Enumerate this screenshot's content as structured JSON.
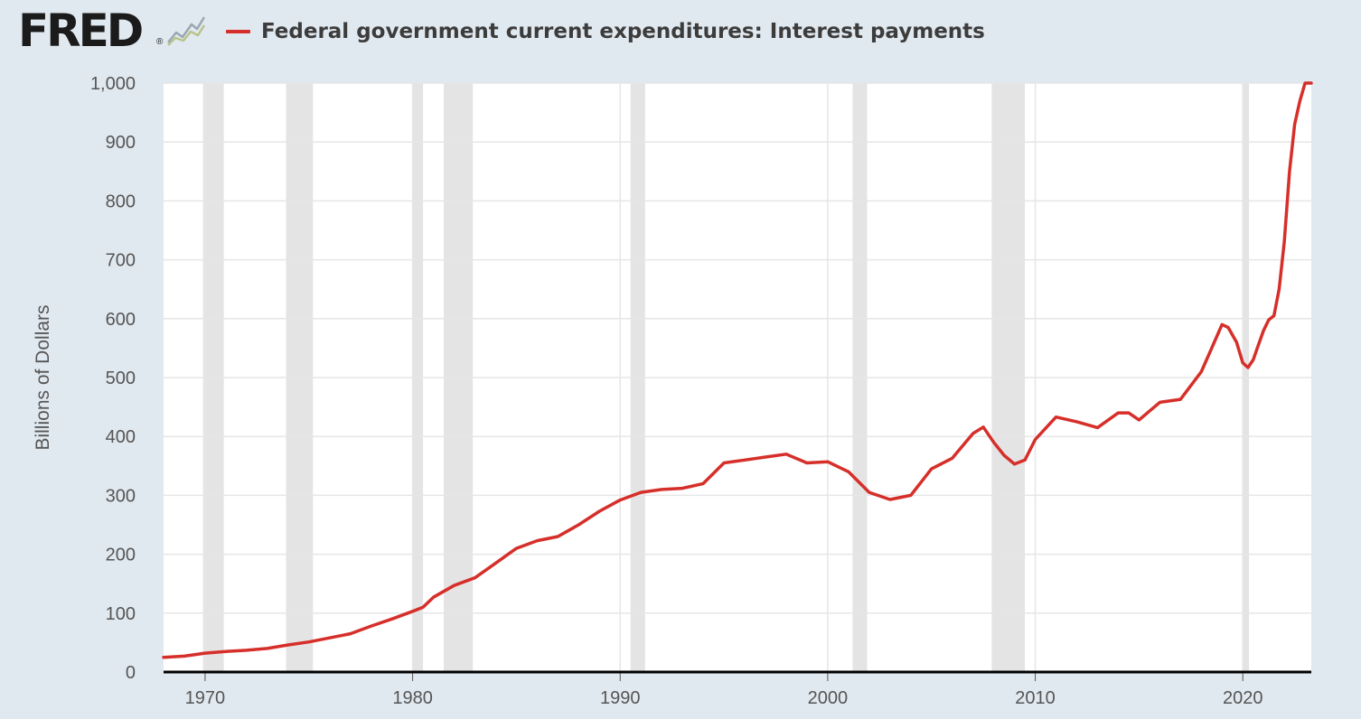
{
  "header": {
    "logo_text": "FRED",
    "logo_mark": "®",
    "logo_icon": "line-graph-icon"
  },
  "colors": {
    "background": "#e1e9f0",
    "plot_background": "#ffffff",
    "series": "#d62f2a",
    "recession": "#e4e4e4",
    "grid": "#e6e6e6",
    "baseline": "#000000"
  },
  "chart_data": {
    "type": "line",
    "title": "",
    "xlabel": "",
    "ylabel": "Billions of Dollars",
    "xlim": [
      1968.0,
      2023.3
    ],
    "ylim": [
      0,
      1000
    ],
    "grid": true,
    "x_ticks": [
      1970,
      1980,
      1990,
      2000,
      2010,
      2020
    ],
    "y_ticks": [
      0,
      100,
      200,
      300,
      400,
      500,
      600,
      700,
      800,
      900,
      1000
    ],
    "y_tick_labels": [
      "0",
      "100",
      "200",
      "300",
      "400",
      "500",
      "600",
      "700",
      "800",
      "900",
      "1,000"
    ],
    "recessions": [
      [
        1969.9,
        1970.9
      ],
      [
        1973.9,
        1975.2
      ],
      [
        1980.0,
        1980.5
      ],
      [
        1981.5,
        1982.9
      ],
      [
        1990.5,
        1991.2
      ],
      [
        2001.2,
        2001.9
      ],
      [
        2007.9,
        2009.5
      ],
      [
        2020.0,
        2020.3
      ]
    ],
    "series": [
      {
        "name": "Federal government current expenditures: Interest payments",
        "x": [
          1968.0,
          1969.0,
          1970.0,
          1971.0,
          1972.0,
          1973.0,
          1974.0,
          1975.0,
          1976.0,
          1977.0,
          1978.0,
          1979.0,
          1980.0,
          1980.5,
          1981.0,
          1982.0,
          1983.0,
          1984.0,
          1985.0,
          1986.0,
          1987.0,
          1988.0,
          1989.0,
          1990.0,
          1991.0,
          1992.0,
          1993.0,
          1994.0,
          1995.0,
          1996.0,
          1997.0,
          1998.0,
          1999.0,
          2000.0,
          2001.0,
          2002.0,
          2003.0,
          2004.0,
          2005.0,
          2006.0,
          2007.0,
          2007.5,
          2008.0,
          2008.5,
          2009.0,
          2009.5,
          2010.0,
          2011.0,
          2012.0,
          2013.0,
          2014.0,
          2014.5,
          2015.0,
          2016.0,
          2017.0,
          2018.0,
          2018.5,
          2019.0,
          2019.3,
          2019.7,
          2020.0,
          2020.25,
          2020.5,
          2020.75,
          2021.0,
          2021.25,
          2021.5,
          2021.75,
          2022.0,
          2022.25,
          2022.5,
          2022.75,
          2023.0,
          2023.15,
          2023.3
        ],
        "y": [
          25,
          27,
          32,
          35,
          37,
          40,
          46,
          51,
          58,
          65,
          78,
          90,
          103,
          110,
          127,
          147,
          160,
          185,
          210,
          223,
          230,
          250,
          273,
          292,
          305,
          310,
          312,
          320,
          355,
          360,
          365,
          370,
          355,
          357,
          340,
          305,
          293,
          300,
          345,
          363,
          405,
          416,
          390,
          368,
          353,
          360,
          395,
          433,
          425,
          415,
          440,
          440,
          428,
          458,
          463,
          510,
          550,
          590,
          585,
          560,
          525,
          517,
          530,
          555,
          580,
          598,
          605,
          650,
          730,
          850,
          930,
          970,
          1000,
          1000,
          1000
        ]
      }
    ]
  }
}
